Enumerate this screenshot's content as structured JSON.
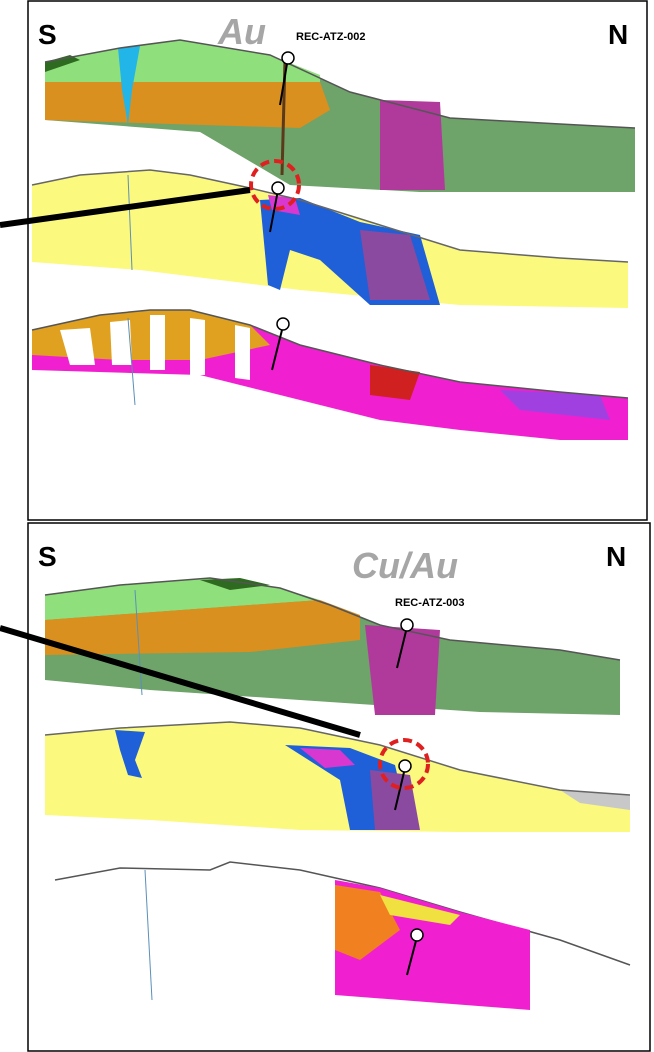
{
  "panels": [
    {
      "left_label": "S",
      "right_label": "N",
      "title": "Au",
      "drillhole": "REC-ATZ-002"
    },
    {
      "left_label": "S",
      "right_label": "N",
      "title": "Cu/Au",
      "drillhole": "REC-ATZ-003"
    }
  ]
}
